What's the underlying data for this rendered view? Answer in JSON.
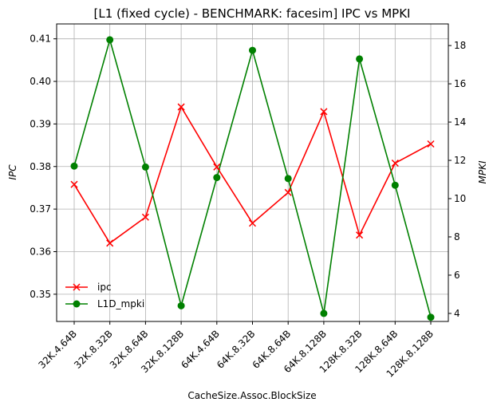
{
  "chart_data": {
    "type": "line",
    "title": "[L1 (fixed cycle) - BENCHMARK: facesim]  IPC vs MPKI",
    "xlabel": "CacheSize.Assoc.BlockSize",
    "ylabel_left": "IPC",
    "ylabel_right": "MPKI",
    "categories": [
      "32K.4.64B",
      "32K.8.32B",
      "32K.8.64B",
      "32K.8.128B",
      "64K.4.64B",
      "64K.8.32B",
      "64K.8.64B",
      "64K.8.128B",
      "128K.8.32B",
      "128K.8.64B",
      "128K.8.128B"
    ],
    "ylim_left": [
      0.3436,
      0.4135
    ],
    "yticks_left": [
      0.35,
      0.36,
      0.37,
      0.38,
      0.39,
      0.4,
      0.41
    ],
    "ylim_right": [
      3.58,
      19.13
    ],
    "yticks_right": [
      4,
      6,
      8,
      10,
      12,
      14,
      16,
      18
    ],
    "grid": true,
    "legend_position": "lower-left",
    "series": [
      {
        "name": "ipc",
        "axis": "left",
        "color": "#ff0000",
        "marker": "x",
        "values": [
          0.3758,
          0.362,
          0.3681,
          0.394,
          0.3799,
          0.3667,
          0.3739,
          0.3929,
          0.3639,
          0.3808,
          0.3853
        ]
      },
      {
        "name": "L1D_mpki",
        "axis": "right",
        "color": "#008000",
        "marker": "o",
        "values": [
          11.7,
          18.3,
          11.65,
          4.4,
          11.1,
          17.75,
          11.05,
          4.0,
          17.3,
          10.7,
          3.8
        ]
      }
    ]
  }
}
